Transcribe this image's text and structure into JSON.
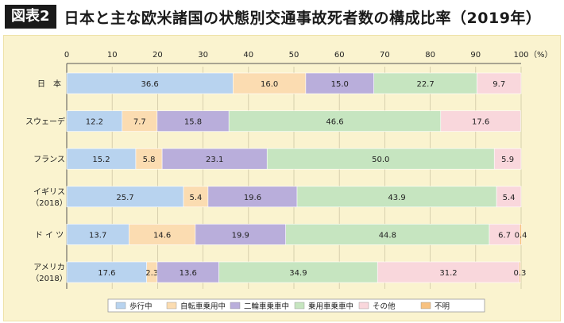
{
  "header": {
    "tag": "図表2",
    "title": "日本と主な欧米諸国の状態別交通事故死者数の構成比率（2019年）"
  },
  "chart_data": {
    "type": "bar",
    "stacked": true,
    "orientation": "horizontal",
    "unit": "（%）",
    "xlim": [
      0,
      100
    ],
    "xticks": [
      0,
      10,
      20,
      30,
      40,
      50,
      60,
      70,
      80,
      90,
      100
    ],
    "grid": true,
    "legend_position": "bottom",
    "categories": [
      {
        "label": "日　本",
        "sub": ""
      },
      {
        "label": "スウェーデン",
        "sub": ""
      },
      {
        "label": "フランス",
        "sub": ""
      },
      {
        "label": "イギリス",
        "sub": "（2018）"
      },
      {
        "label": "ド イ ツ",
        "sub": ""
      },
      {
        "label": "アメリカ",
        "sub": "（2018）"
      }
    ],
    "series": [
      {
        "name": "歩行中",
        "color": "#b8d3ef",
        "values": [
          36.6,
          12.2,
          15.2,
          25.7,
          13.7,
          17.6
        ]
      },
      {
        "name": "自転車乗用中",
        "color": "#fbdcb1",
        "values": [
          16.0,
          7.7,
          5.8,
          5.4,
          14.6,
          2.3
        ]
      },
      {
        "name": "二輪車乗車中",
        "color": "#b9aedb",
        "values": [
          15.0,
          15.8,
          23.1,
          19.6,
          19.9,
          13.6
        ]
      },
      {
        "name": "乗用車乗車中",
        "color": "#c6e5c0",
        "values": [
          22.7,
          46.6,
          50.0,
          43.9,
          44.8,
          34.9
        ]
      },
      {
        "name": "その他",
        "color": "#f9d7dc",
        "values": [
          9.7,
          17.6,
          5.9,
          5.4,
          6.7,
          31.2
        ]
      },
      {
        "name": "不明",
        "color": "#f7c180",
        "values": [
          0,
          0,
          0,
          0,
          0.4,
          0.3
        ]
      }
    ]
  }
}
